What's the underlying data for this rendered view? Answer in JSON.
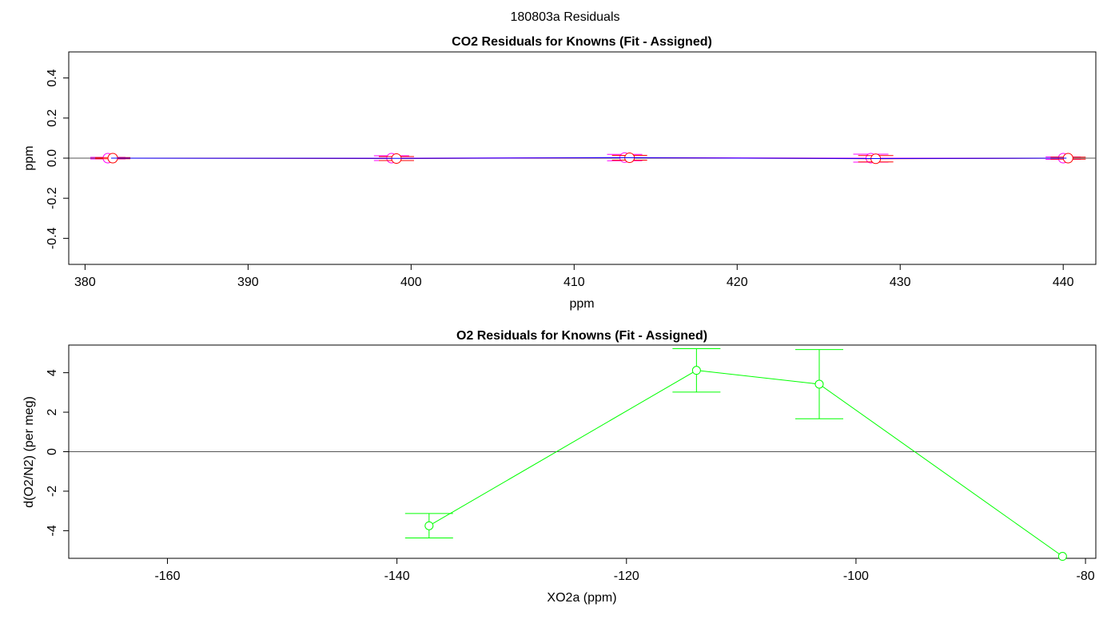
{
  "figure": {
    "suptitle": "180803a  Residuals"
  },
  "chart_data": [
    {
      "type": "line",
      "title": "CO2 Residuals for Knowns (Fit - Assigned)",
      "xlabel": "ppm",
      "ylabel": "ppm",
      "xlim": [
        379,
        442
      ],
      "ylim": [
        -0.53,
        0.53
      ],
      "x_ticks": [
        380,
        390,
        400,
        410,
        420,
        430,
        440
      ],
      "y_ticks": [
        -0.4,
        -0.2,
        0.0,
        0.2,
        0.4
      ],
      "y_tick_labels": [
        "-0.4",
        "-0.2",
        "0.0",
        "0.2",
        "0.4"
      ],
      "zero_line": true,
      "series": [
        {
          "color": "#ff00ff",
          "x": [
            381.4,
            398.8,
            413.1,
            428.2,
            440.0
          ],
          "y": [
            0.0,
            0.0,
            0.003,
            0.0,
            0.0
          ],
          "err": [
            0.004,
            0.012,
            0.016,
            0.02,
            0.006
          ]
        },
        {
          "color": "#ff0000",
          "x": [
            381.7,
            399.1,
            413.4,
            428.5,
            440.3
          ],
          "y": [
            0.0,
            -0.002,
            0.002,
            -0.003,
            0.0
          ],
          "err": [
            0.003,
            0.01,
            0.012,
            0.016,
            0.005
          ]
        },
        {
          "color": "#0000ff",
          "x": [
            381.6,
            399.0,
            413.3,
            428.4,
            440.2
          ],
          "y": [
            0.0,
            -0.001,
            0.002,
            -0.002,
            0.0
          ],
          "err": [
            0.0,
            0.0,
            0.0,
            0.0,
            0.0
          ]
        }
      ]
    },
    {
      "type": "line",
      "title": "O2 Residuals for Knowns (Fit - Assigned)",
      "xlabel": "XO2a (ppm)",
      "ylabel": "d(O2/N2) (per meg)",
      "xlim": [
        -168.6,
        -79.1
      ],
      "ylim": [
        -5.4,
        5.4
      ],
      "x_ticks": [
        -160,
        -140,
        -120,
        -100,
        -80
      ],
      "y_ticks": [
        -4,
        -2,
        0,
        2,
        4
      ],
      "y_tick_labels": [
        "-4",
        "-2",
        "0",
        "2",
        "4"
      ],
      "zero_line": true,
      "series": [
        {
          "color": "#00ff00",
          "x": [
            -137.2,
            -113.9,
            -103.2,
            -82.0
          ],
          "y": [
            -3.75,
            4.12,
            3.42,
            -5.3
          ],
          "err": [
            0.62,
            1.1,
            1.75,
            0.0
          ]
        }
      ]
    }
  ]
}
